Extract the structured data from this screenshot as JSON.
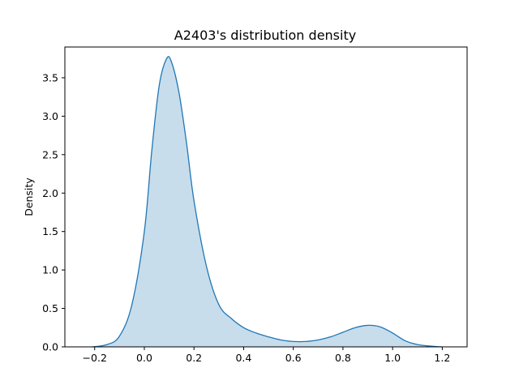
{
  "chart_data": {
    "type": "area",
    "title": "A2403's distribution density",
    "xlabel": "",
    "ylabel": "Density",
    "xlim": [
      -0.32,
      1.3
    ],
    "ylim": [
      0,
      3.9
    ],
    "x_ticks": [
      -0.2,
      0.0,
      0.2,
      0.4,
      0.6,
      0.8,
      1.0,
      1.2
    ],
    "x_tick_labels": [
      "−0.2",
      "0.0",
      "0.2",
      "0.4",
      "0.6",
      "0.8",
      "1.0",
      "1.2"
    ],
    "y_ticks": [
      0.0,
      0.5,
      1.0,
      1.5,
      2.0,
      2.5,
      3.0,
      3.5
    ],
    "y_tick_labels": [
      "0.0",
      "0.5",
      "1.0",
      "1.5",
      "2.0",
      "2.5",
      "3.0",
      "3.5"
    ],
    "grid": false,
    "series": [
      {
        "name": "A2403",
        "line_color": "#1f77b4",
        "fill_color": "#1f77b4",
        "fill_alpha": 0.25,
        "x": [
          -0.21,
          -0.15,
          -0.1,
          -0.05,
          0.0,
          0.03,
          0.06,
          0.09,
          0.11,
          0.14,
          0.17,
          0.2,
          0.25,
          0.3,
          0.35,
          0.4,
          0.45,
          0.5,
          0.55,
          0.6,
          0.65,
          0.7,
          0.75,
          0.8,
          0.85,
          0.9,
          0.95,
          1.0,
          1.05,
          1.1,
          1.15,
          1.2
        ],
        "y": [
          0.0,
          0.03,
          0.14,
          0.55,
          1.5,
          2.55,
          3.4,
          3.75,
          3.7,
          3.3,
          2.65,
          1.9,
          1.05,
          0.55,
          0.37,
          0.25,
          0.18,
          0.13,
          0.09,
          0.07,
          0.07,
          0.09,
          0.13,
          0.19,
          0.25,
          0.28,
          0.26,
          0.18,
          0.08,
          0.03,
          0.01,
          0.0
        ]
      }
    ]
  }
}
